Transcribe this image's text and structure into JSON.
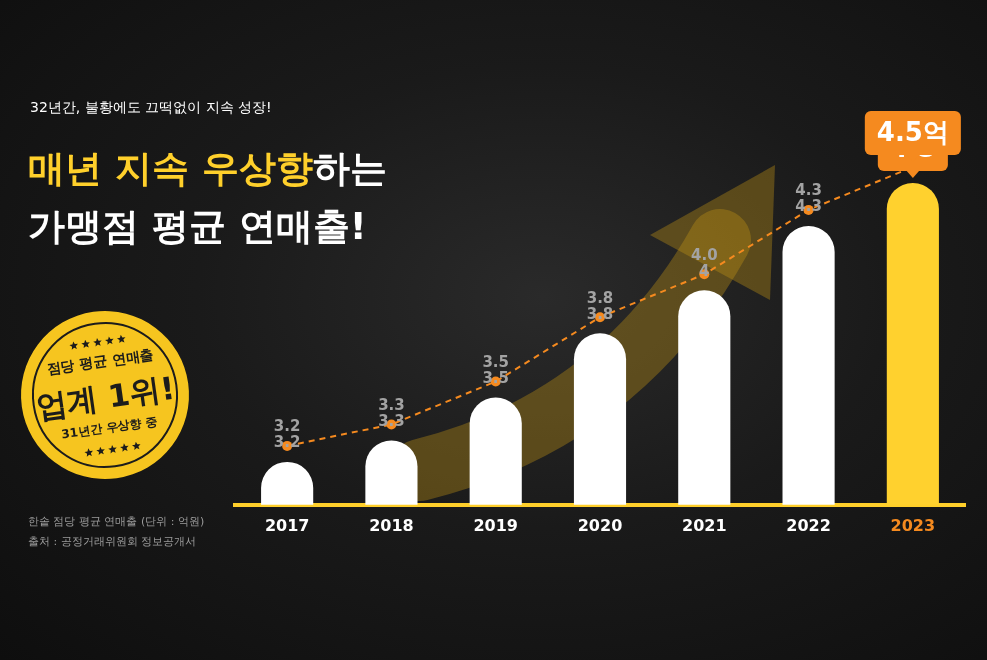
{
  "header": {
    "kicker": "32년간, 불황에도 끄떡없이 지속 성장!",
    "title": [
      [
        {
          "text": "매년 지속 우상향",
          "color": "#ffd02b"
        },
        {
          "text": "하는",
          "color": "#ffffff"
        }
      ],
      [
        {
          "text": "가맹점 평균 연매출!",
          "color": "#ffffff"
        }
      ]
    ]
  },
  "badge": {
    "top": "점당 평균 연매출",
    "main": "업계 1위!",
    "bottom": "31년간 우상향 중"
  },
  "notes": [
    "한솥 점당 평균 연매출 (단위 : 억원)",
    "출처 : 공정거래위원회 정보공개서"
  ],
  "chart_data": {
    "type": "bar",
    "categories": [
      "2017",
      "2018",
      "2019",
      "2020",
      "2021",
      "2022",
      "2023"
    ],
    "series": [
      {
        "type": "bar",
        "colors": [
          "#ffffff",
          "#ffffff",
          "#ffffff",
          "#ffffff",
          "#ffffff",
          "#ffffff",
          "#ffd12e"
        ],
        "values": [
          3.2,
          3.3,
          3.5,
          3.8,
          4.0,
          4.3,
          4.5
        ]
      },
      {
        "type": "line",
        "color": "#f58a1f",
        "line_style": "dashed",
        "marker": "circle",
        "values": [
          3.2,
          3.3,
          3.5,
          3.8,
          4.0,
          4.3,
          4.5
        ],
        "value_labels": [
          "3.2",
          "3.3",
          "3.5",
          "3.8",
          "4.0",
          "4.3",
          "4.5억"
        ]
      }
    ],
    "ylim": [
      3.0,
      4.5
    ],
    "grid": false,
    "tick_labels": "x",
    "data_labels": true
  }
}
